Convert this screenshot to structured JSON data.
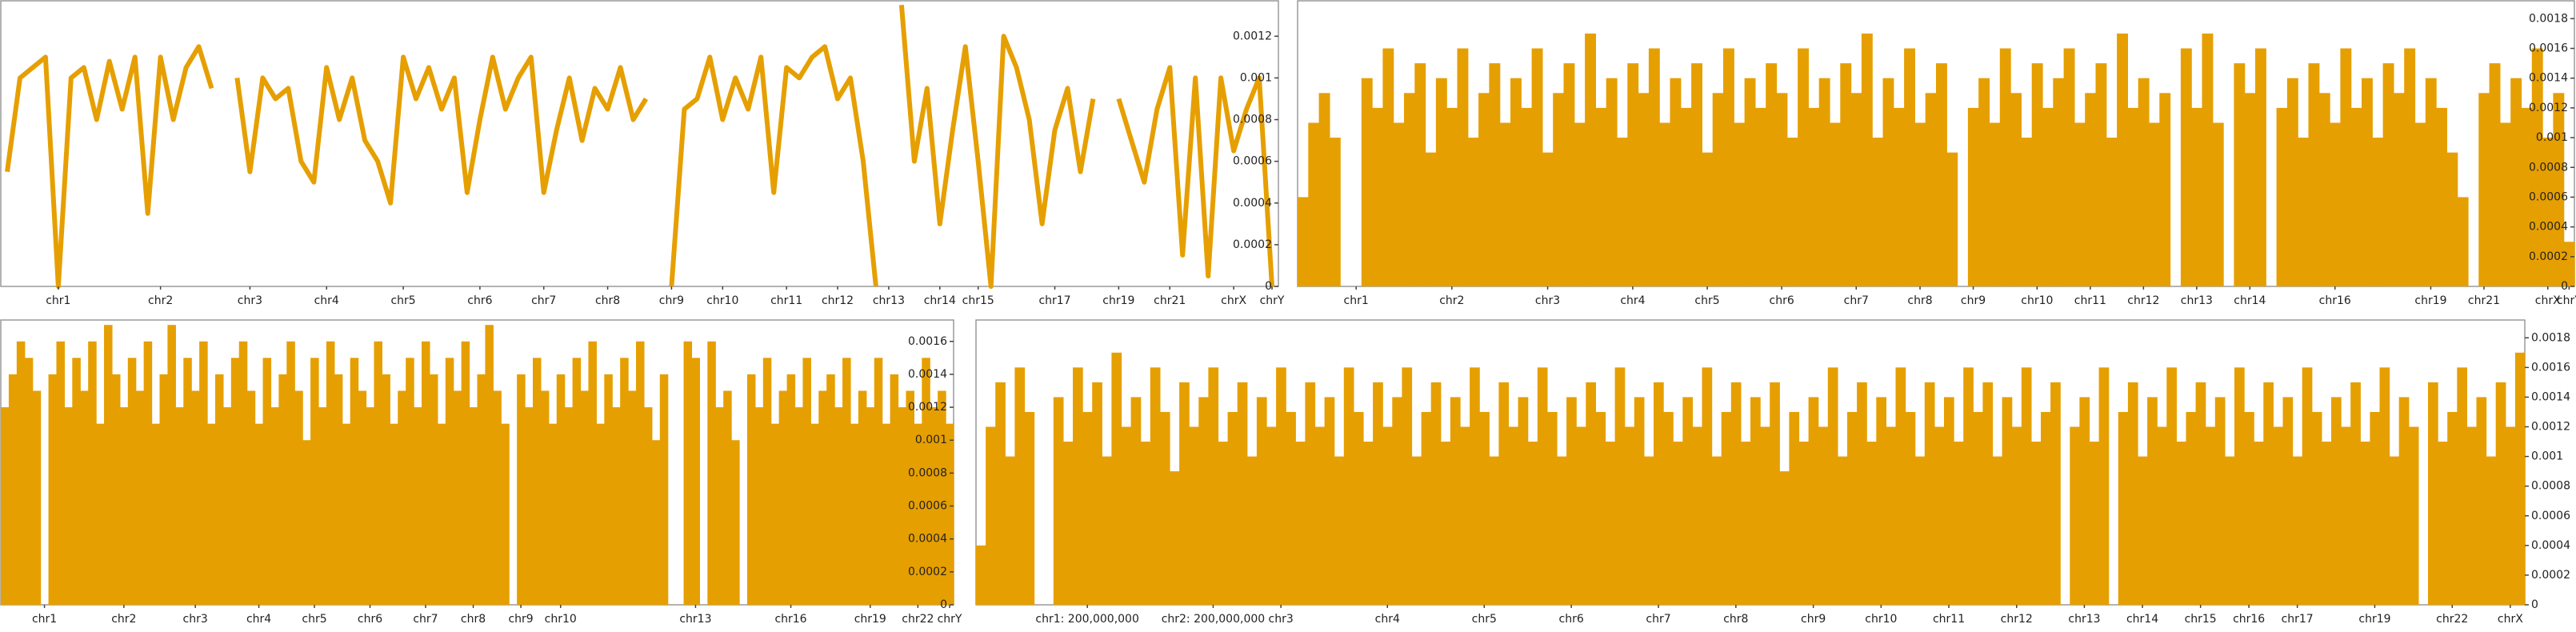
{
  "chart_data": [
    {
      "type": "line",
      "color": "#e69f00",
      "ylim": [
        0,
        0.00137
      ],
      "yticks": [
        0,
        0.0002,
        0.0004,
        0.0006,
        0.0008,
        0.001,
        0.0012
      ],
      "categories": [
        null,
        null,
        null,
        null,
        "chr1",
        null,
        null,
        null,
        null,
        null,
        null,
        null,
        "chr2",
        null,
        null,
        null,
        null,
        null,
        null,
        "chr3",
        null,
        null,
        null,
        null,
        null,
        "chr4",
        null,
        null,
        null,
        null,
        null,
        "chr5",
        null,
        null,
        null,
        null,
        null,
        "chr6",
        null,
        null,
        null,
        null,
        "chr7",
        null,
        null,
        null,
        null,
        "chr8",
        null,
        null,
        null,
        null,
        "chr9",
        null,
        null,
        null,
        "chr10",
        null,
        null,
        null,
        null,
        "chr11",
        null,
        null,
        null,
        "chr12",
        null,
        null,
        null,
        "chr13",
        null,
        null,
        null,
        "chr14",
        null,
        null,
        "chr15",
        null,
        null,
        null,
        null,
        null,
        "chr17",
        null,
        null,
        null,
        null,
        "chr19",
        null,
        null,
        null,
        "chr21",
        null,
        null,
        null,
        null,
        "chrX",
        null,
        null,
        "chrY"
      ],
      "values": [
        0.00055,
        0.001,
        0.00105,
        0.0011,
        0,
        0.001,
        0.00105,
        0.0008,
        0.00108,
        0.00085,
        0.0011,
        0.00035,
        0.0011,
        0.0008,
        0.00105,
        0.00115,
        0.00095,
        null,
        0.001,
        0.00055,
        0.001,
        0.0009,
        0.00095,
        0.0006,
        0.0005,
        0.00105,
        0.0008,
        0.001,
        0.0007,
        0.0006,
        0.0004,
        0.0011,
        0.0009,
        0.00105,
        0.00085,
        0.001,
        0.00045,
        0.0008,
        0.0011,
        0.00085,
        0.001,
        0.0011,
        0.00045,
        0.00075,
        0.001,
        0.0007,
        0.00095,
        0.00085,
        0.00105,
        0.0008,
        0.0009,
        null,
        0,
        0.00085,
        0.0009,
        0.0011,
        0.0008,
        0.001,
        0.00085,
        0.0011,
        0.00045,
        0.00105,
        0.001,
        0.0011,
        0.00115,
        0.0009,
        0.001,
        0.0006,
        0,
        null,
        0.00135,
        0.0006,
        0.00095,
        0.0003,
        0.00075,
        0.00115,
        0.0006,
        0,
        0.0012,
        0.00105,
        0.0008,
        0.0003,
        0.00075,
        0.00095,
        0.00055,
        0.0009,
        null,
        0.0009,
        0.0007,
        0.0005,
        0.00085,
        0.00105,
        0.00015,
        0.001,
        5e-05,
        0.001,
        0.00065,
        0.00085,
        0.001,
        0
      ]
    },
    {
      "type": "bar",
      "color": "#e69f00",
      "ylim": [
        0,
        0.00192
      ],
      "yticks": [
        0,
        0.0002,
        0.0004,
        0.0006,
        0.0008,
        0.001,
        0.0012,
        0.0014,
        0.0016,
        0.0018
      ],
      "categories": [
        null,
        null,
        null,
        null,
        null,
        "chr1",
        null,
        null,
        null,
        null,
        null,
        null,
        null,
        null,
        "chr2",
        null,
        null,
        null,
        null,
        null,
        null,
        null,
        null,
        "chr3",
        null,
        null,
        null,
        null,
        null,
        null,
        null,
        "chr4",
        null,
        null,
        null,
        null,
        null,
        null,
        "chr5",
        null,
        null,
        null,
        null,
        null,
        null,
        "chr6",
        null,
        null,
        null,
        null,
        null,
        null,
        "chr7",
        null,
        null,
        null,
        null,
        null,
        "chr8",
        null,
        null,
        null,
        null,
        "chr9",
        null,
        null,
        null,
        null,
        null,
        "chr10",
        null,
        null,
        null,
        null,
        "chr11",
        null,
        null,
        null,
        null,
        "chr12",
        null,
        null,
        null,
        null,
        "chr13",
        null,
        null,
        null,
        null,
        "chr14",
        null,
        null,
        null,
        null,
        null,
        null,
        null,
        "chr16",
        null,
        null,
        null,
        null,
        null,
        null,
        null,
        null,
        "chr19",
        null,
        null,
        null,
        null,
        "chr21",
        null,
        null,
        null,
        null,
        null,
        "chrX",
        null,
        "chrY"
      ],
      "values": [
        0.0006,
        0.0011,
        0.0013,
        0.001,
        0,
        0,
        0.0014,
        0.0012,
        0.0016,
        0.0011,
        0.0013,
        0.0015,
        0.0009,
        0.0014,
        0.0012,
        0.0016,
        0.001,
        0.0013,
        0.0015,
        0.0011,
        0.0014,
        0.0012,
        0.0016,
        0.0009,
        0.0013,
        0.0015,
        0.0011,
        0.0017,
        0.0012,
        0.0014,
        0.001,
        0.0015,
        0.0013,
        0.0016,
        0.0011,
        0.0014,
        0.0012,
        0.0015,
        0.0009,
        0.0013,
        0.0016,
        0.0011,
        0.0014,
        0.0012,
        0.0015,
        0.0013,
        0.001,
        0.0016,
        0.0012,
        0.0014,
        0.0011,
        0.0015,
        0.0013,
        0.0017,
        0.001,
        0.0014,
        0.0012,
        0.0016,
        0.0011,
        0.0013,
        0.0015,
        0.0009,
        0,
        0.0012,
        0.0014,
        0.0011,
        0.0016,
        0.0013,
        0.001,
        0.0015,
        0.0012,
        0.0014,
        0.0016,
        0.0011,
        0.0013,
        0.0015,
        0.001,
        0.0017,
        0.0012,
        0.0014,
        0.0011,
        0.0013,
        0,
        0.0016,
        0.0012,
        0.0017,
        0.0011,
        0,
        0.0015,
        0.0013,
        0.0016,
        0,
        0.0012,
        0.0014,
        0.001,
        0.0015,
        0.0013,
        0.0011,
        0.0016,
        0.0012,
        0.0014,
        0.001,
        0.0015,
        0.0013,
        0.0016,
        0.0011,
        0.0014,
        0.0012,
        0.0009,
        0.0006,
        0,
        0.0013,
        0.0015,
        0.0011,
        0.0014,
        0.0012,
        0.0016,
        0.001,
        0.0013,
        0.0003
      ]
    },
    {
      "type": "bar",
      "color": "#e69f00",
      "ylim": [
        0,
        0.00173
      ],
      "yticks": [
        0,
        0.0002,
        0.0004,
        0.0006,
        0.0008,
        0.001,
        0.0012,
        0.0014,
        0.0016
      ],
      "categories": [
        null,
        null,
        null,
        null,
        null,
        "chr1",
        null,
        null,
        null,
        null,
        null,
        null,
        null,
        null,
        null,
        "chr2",
        null,
        null,
        null,
        null,
        null,
        null,
        null,
        null,
        "chr3",
        null,
        null,
        null,
        null,
        null,
        null,
        null,
        "chr4",
        null,
        null,
        null,
        null,
        null,
        null,
        "chr5",
        null,
        null,
        null,
        null,
        null,
        null,
        "chr6",
        null,
        null,
        null,
        null,
        null,
        null,
        "chr7",
        null,
        null,
        null,
        null,
        null,
        "chr8",
        null,
        null,
        null,
        null,
        null,
        "chr9",
        null,
        null,
        null,
        null,
        "chr10",
        null,
        null,
        null,
        null,
        null,
        null,
        null,
        null,
        null,
        null,
        null,
        null,
        null,
        null,
        null,
        null,
        "chr13",
        null,
        null,
        null,
        null,
        null,
        null,
        null,
        null,
        null,
        null,
        null,
        "chr16",
        null,
        null,
        null,
        null,
        null,
        null,
        null,
        null,
        null,
        "chr19",
        null,
        null,
        null,
        null,
        null,
        "chr22",
        null,
        null,
        null,
        "chrY"
      ],
      "values": [
        0.0012,
        0.0014,
        0.0016,
        0.0015,
        0.0013,
        0,
        0.0014,
        0.0016,
        0.0012,
        0.0015,
        0.0013,
        0.0016,
        0.0011,
        0.0017,
        0.0014,
        0.0012,
        0.0015,
        0.0013,
        0.0016,
        0.0011,
        0.0014,
        0.0017,
        0.0012,
        0.0015,
        0.0013,
        0.0016,
        0.0011,
        0.0014,
        0.0012,
        0.0015,
        0.0016,
        0.0013,
        0.0011,
        0.0015,
        0.0012,
        0.0014,
        0.0016,
        0.0013,
        0.001,
        0.0015,
        0.0012,
        0.0016,
        0.0014,
        0.0011,
        0.0015,
        0.0013,
        0.0012,
        0.0016,
        0.0014,
        0.0011,
        0.0013,
        0.0015,
        0.0012,
        0.0016,
        0.0014,
        0.0011,
        0.0015,
        0.0013,
        0.0016,
        0.0012,
        0.0014,
        0.0017,
        0.0013,
        0.0011,
        0,
        0.0014,
        0.0012,
        0.0015,
        0.0013,
        0.0011,
        0.0014,
        0.0012,
        0.0015,
        0.0013,
        0.0016,
        0.0011,
        0.0014,
        0.0012,
        0.0015,
        0.0013,
        0.0016,
        0.0012,
        0.001,
        0.0014,
        0,
        0,
        0.0016,
        0.0015,
        0,
        0.0016,
        0.0012,
        0.0013,
        0.001,
        0,
        0.0014,
        0.0012,
        0.0015,
        0.0011,
        0.0013,
        0.0014,
        0.0012,
        0.0015,
        0.0011,
        0.0013,
        0.0014,
        0.0012,
        0.0015,
        0.0011,
        0.0013,
        0.0012,
        0.0015,
        0.0011,
        0.0014,
        0.0012,
        0.0013,
        0.0011,
        0.0015,
        0.0012,
        0.0013,
        0.0011
      ]
    },
    {
      "type": "bar",
      "color": "#e69f00",
      "ylim": [
        0,
        0.00192
      ],
      "yticks": [
        0,
        0.0002,
        0.0004,
        0.0006,
        0.0008,
        0.001,
        0.0012,
        0.0014,
        0.0016,
        0.0018
      ],
      "categories": [
        null,
        null,
        null,
        null,
        null,
        null,
        null,
        null,
        null,
        null,
        null,
        "chr1: 200,000,000",
        null,
        null,
        null,
        null,
        null,
        null,
        null,
        null,
        null,
        null,
        null,
        null,
        "chr2: 200,000,000",
        null,
        null,
        null,
        null,
        null,
        null,
        "chr3",
        null,
        null,
        null,
        null,
        null,
        null,
        null,
        null,
        null,
        null,
        "chr4",
        null,
        null,
        null,
        null,
        null,
        null,
        null,
        null,
        null,
        "chr5",
        null,
        null,
        null,
        null,
        null,
        null,
        null,
        null,
        "chr6",
        null,
        null,
        null,
        null,
        null,
        null,
        null,
        null,
        "chr7",
        null,
        null,
        null,
        null,
        null,
        null,
        null,
        "chr8",
        null,
        null,
        null,
        null,
        null,
        null,
        null,
        "chr9",
        null,
        null,
        null,
        null,
        null,
        null,
        "chr10",
        null,
        null,
        null,
        null,
        null,
        null,
        "chr11",
        null,
        null,
        null,
        null,
        null,
        null,
        "chr12",
        null,
        null,
        null,
        null,
        null,
        null,
        "chr13",
        null,
        null,
        null,
        null,
        null,
        "chr14",
        null,
        null,
        null,
        null,
        null,
        "chr15",
        null,
        null,
        null,
        null,
        "chr16",
        null,
        null,
        null,
        null,
        "chr17",
        null,
        null,
        null,
        null,
        null,
        null,
        null,
        "chr19",
        null,
        null,
        null,
        null,
        null,
        null,
        null,
        "chr22",
        null,
        null,
        null,
        null,
        null,
        "chrX",
        null
      ],
      "values": [
        0.0004,
        0.0012,
        0.0015,
        0.001,
        0.0016,
        0.0013,
        0,
        0,
        0.0014,
        0.0011,
        0.0016,
        0.0013,
        0.0015,
        0.001,
        0.0017,
        0.0012,
        0.0014,
        0.0011,
        0.0016,
        0.0013,
        0.0009,
        0.0015,
        0.0012,
        0.0014,
        0.0016,
        0.0011,
        0.0013,
        0.0015,
        0.001,
        0.0014,
        0.0012,
        0.0016,
        0.0013,
        0.0011,
        0.0015,
        0.0012,
        0.0014,
        0.001,
        0.0016,
        0.0013,
        0.0011,
        0.0015,
        0.0012,
        0.0014,
        0.0016,
        0.001,
        0.0013,
        0.0015,
        0.0011,
        0.0014,
        0.0012,
        0.0016,
        0.0013,
        0.001,
        0.0015,
        0.0012,
        0.0014,
        0.0011,
        0.0016,
        0.0013,
        0.001,
        0.0014,
        0.0012,
        0.0015,
        0.0013,
        0.0011,
        0.0016,
        0.0012,
        0.0014,
        0.001,
        0.0015,
        0.0013,
        0.0011,
        0.0014,
        0.0012,
        0.0016,
        0.001,
        0.0013,
        0.0015,
        0.0011,
        0.0014,
        0.0012,
        0.0015,
        0.0009,
        0.0013,
        0.0011,
        0.0014,
        0.0012,
        0.0016,
        0.001,
        0.0013,
        0.0015,
        0.0011,
        0.0014,
        0.0012,
        0.0016,
        0.0013,
        0.001,
        0.0015,
        0.0012,
        0.0014,
        0.0011,
        0.0016,
        0.0013,
        0.0015,
        0.001,
        0.0014,
        0.0012,
        0.0016,
        0.0011,
        0.0013,
        0.0015,
        0,
        0.0012,
        0.0014,
        0.0011,
        0.0016,
        0,
        0.0013,
        0.0015,
        0.001,
        0.0014,
        0.0012,
        0.0016,
        0.0011,
        0.0013,
        0.0015,
        0.0012,
        0.0014,
        0.001,
        0.0016,
        0.0013,
        0.0011,
        0.0015,
        0.0012,
        0.0014,
        0.001,
        0.0016,
        0.0013,
        0.0011,
        0.0014,
        0.0012,
        0.0015,
        0.0011,
        0.0013,
        0.0016,
        0.001,
        0.0014,
        0.0012,
        0,
        0.0015,
        0.0011,
        0.0013,
        0.0016,
        0.0012,
        0.0014,
        0.001,
        0.0015,
        0.0012,
        0.0017
      ]
    }
  ]
}
